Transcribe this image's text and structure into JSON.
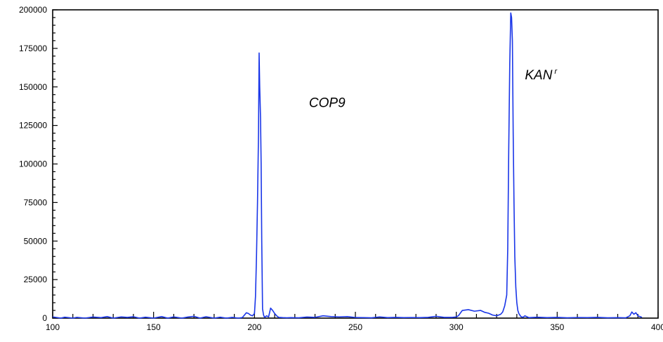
{
  "chart_data": {
    "type": "line",
    "title": "",
    "xlabel": "",
    "ylabel": "",
    "xlim": [
      100,
      400
    ],
    "ylim": [
      0,
      200000
    ],
    "x_ticks": [
      100,
      150,
      200,
      250,
      300,
      350,
      400
    ],
    "y_ticks": [
      0,
      25000,
      50000,
      75000,
      100000,
      125000,
      150000,
      175000,
      200000
    ],
    "grid": false,
    "legend": "none",
    "line_color": "#1a36e8",
    "annotations": [
      {
        "text": "COP9",
        "x": 227,
        "y": 137000
      },
      {
        "text": "KAN",
        "superscript": "r",
        "x": 334,
        "y": 155000
      }
    ],
    "series": [
      {
        "x": [
          100,
          104,
          106,
          110,
          112,
          116,
          120,
          124,
          127,
          130,
          134,
          137,
          140,
          143,
          146,
          150,
          154,
          157,
          160,
          164,
          167,
          170,
          173,
          176,
          180,
          183,
          186,
          189,
          192,
          194,
          196,
          197,
          198,
          199,
          200,
          200.5,
          201,
          201.5,
          202,
          202.3,
          202.6,
          203,
          203.3,
          203.6,
          204,
          204.5,
          205,
          206,
          207,
          208,
          209,
          210,
          211,
          212,
          214,
          216,
          218,
          222,
          226,
          230,
          234,
          238,
          242,
          246,
          250,
          254,
          258,
          262,
          266,
          270,
          274,
          278,
          282,
          286,
          290,
          294,
          298,
          300,
          301,
          303,
          306,
          309,
          312,
          314,
          316,
          318,
          320,
          322,
          323,
          324,
          325,
          325.5,
          326,
          326.5,
          327,
          327.4,
          327.8,
          328.2,
          328.6,
          329,
          329.5,
          330,
          330.5,
          331,
          332,
          333,
          334,
          336,
          340,
          345,
          350,
          355,
          360,
          365,
          370,
          375,
          380,
          384,
          386,
          387,
          388,
          389,
          390,
          392
        ],
        "values": [
          800,
          0,
          600,
          0,
          500,
          0,
          700,
          300,
          1000,
          0,
          800,
          500,
          900,
          0,
          600,
          0,
          1000,
          0,
          800,
          0,
          700,
          1200,
          0,
          900,
          0,
          600,
          0,
          500,
          0,
          400,
          3500,
          3000,
          2000,
          1500,
          3000,
          14000,
          40000,
          75000,
          120000,
          172000,
          150000,
          130000,
          100000,
          50000,
          6000,
          2000,
          500,
          1500,
          800,
          6500,
          5000,
          3000,
          1500,
          500,
          300,
          200,
          300,
          200,
          700,
          500,
          1500,
          1000,
          800,
          1000,
          400,
          300,
          200,
          800,
          300,
          500,
          300,
          400,
          300,
          500,
          1200,
          500,
          500,
          800,
          1500,
          5000,
          5500,
          4500,
          5000,
          3800,
          3200,
          2000,
          1500,
          2500,
          4000,
          8000,
          15000,
          45000,
          110000,
          165000,
          198000,
          195000,
          180000,
          120000,
          75000,
          40000,
          20000,
          10000,
          5000,
          3000,
          1000,
          500,
          1500,
          300,
          600,
          300,
          500,
          200,
          400,
          300,
          500,
          200,
          300,
          200,
          1500,
          4000,
          2500,
          3500,
          1500,
          500
        ]
      }
    ]
  }
}
